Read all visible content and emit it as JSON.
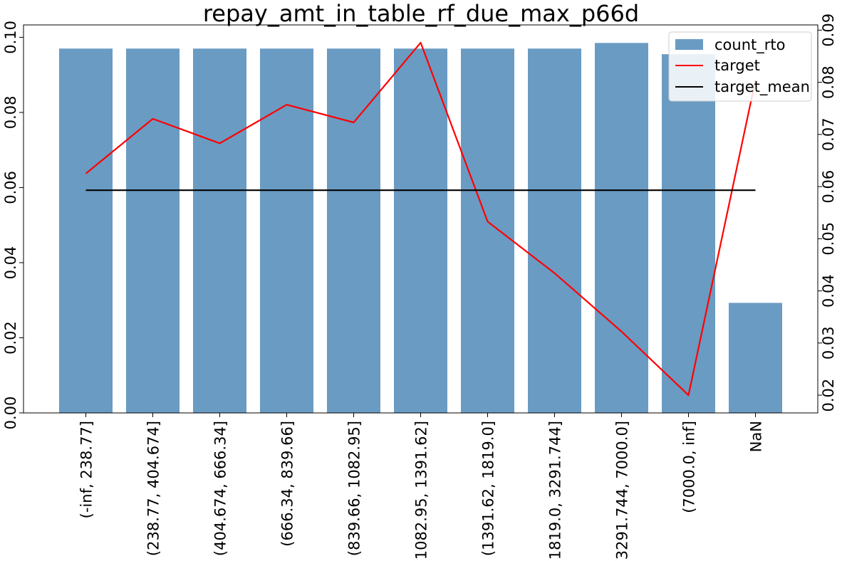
{
  "chart_data": {
    "type": "bar",
    "title": "repay_amt_in_table_rf_due_max_p66d",
    "categories": [
      "(-inf, 238.77]",
      "(238.77, 404.674]",
      "(404.674, 666.34]",
      "(666.34, 839.66]",
      "(839.66, 1082.95]",
      "(1082.95, 1391.62]",
      "(1391.62, 1819.0]",
      "(1819.0, 3291.744]",
      "(3291.744, 7000.0]",
      "(7000.0, inf]",
      "NaN"
    ],
    "series": [
      {
        "name": "count_rto",
        "type": "bar",
        "axis": "left",
        "color": "#6a9bc3",
        "values": [
          0.097,
          0.097,
          0.097,
          0.097,
          0.097,
          0.097,
          0.097,
          0.097,
          0.0985,
          0.0955,
          0.0293
        ]
      },
      {
        "name": "target",
        "type": "line",
        "axis": "right",
        "color": "#ff0000",
        "values": [
          0.0625,
          0.073,
          0.0683,
          0.0757,
          0.0723,
          0.0876,
          0.0533,
          0.0434,
          0.0322,
          0.02,
          0.0804
        ]
      },
      {
        "name": "target_mean",
        "type": "line",
        "axis": "right",
        "color": "#000000",
        "values": [
          0.0593,
          0.0593,
          0.0593,
          0.0593,
          0.0593,
          0.0593,
          0.0593,
          0.0593,
          0.0593,
          0.0593,
          0.0593
        ]
      }
    ],
    "y_left": {
      "ylim": [
        0,
        0.1033
      ],
      "ticks": [
        0.0,
        0.02,
        0.04,
        0.06,
        0.08,
        0.1
      ],
      "tick_labels": [
        "0.00",
        "0.02",
        "0.04",
        "0.06",
        "0.08",
        "0.10"
      ]
    },
    "y_right": {
      "ylim": [
        0.0166,
        0.091
      ],
      "ticks": [
        0.02,
        0.03,
        0.04,
        0.05,
        0.06,
        0.07,
        0.08,
        0.09
      ],
      "tick_labels": [
        "0.02",
        "0.03",
        "0.04",
        "0.05",
        "0.06",
        "0.07",
        "0.08",
        "0.09"
      ]
    },
    "grid": false,
    "legend": {
      "position": "top-right",
      "entries": [
        "count_rto",
        "target",
        "target_mean"
      ]
    }
  }
}
